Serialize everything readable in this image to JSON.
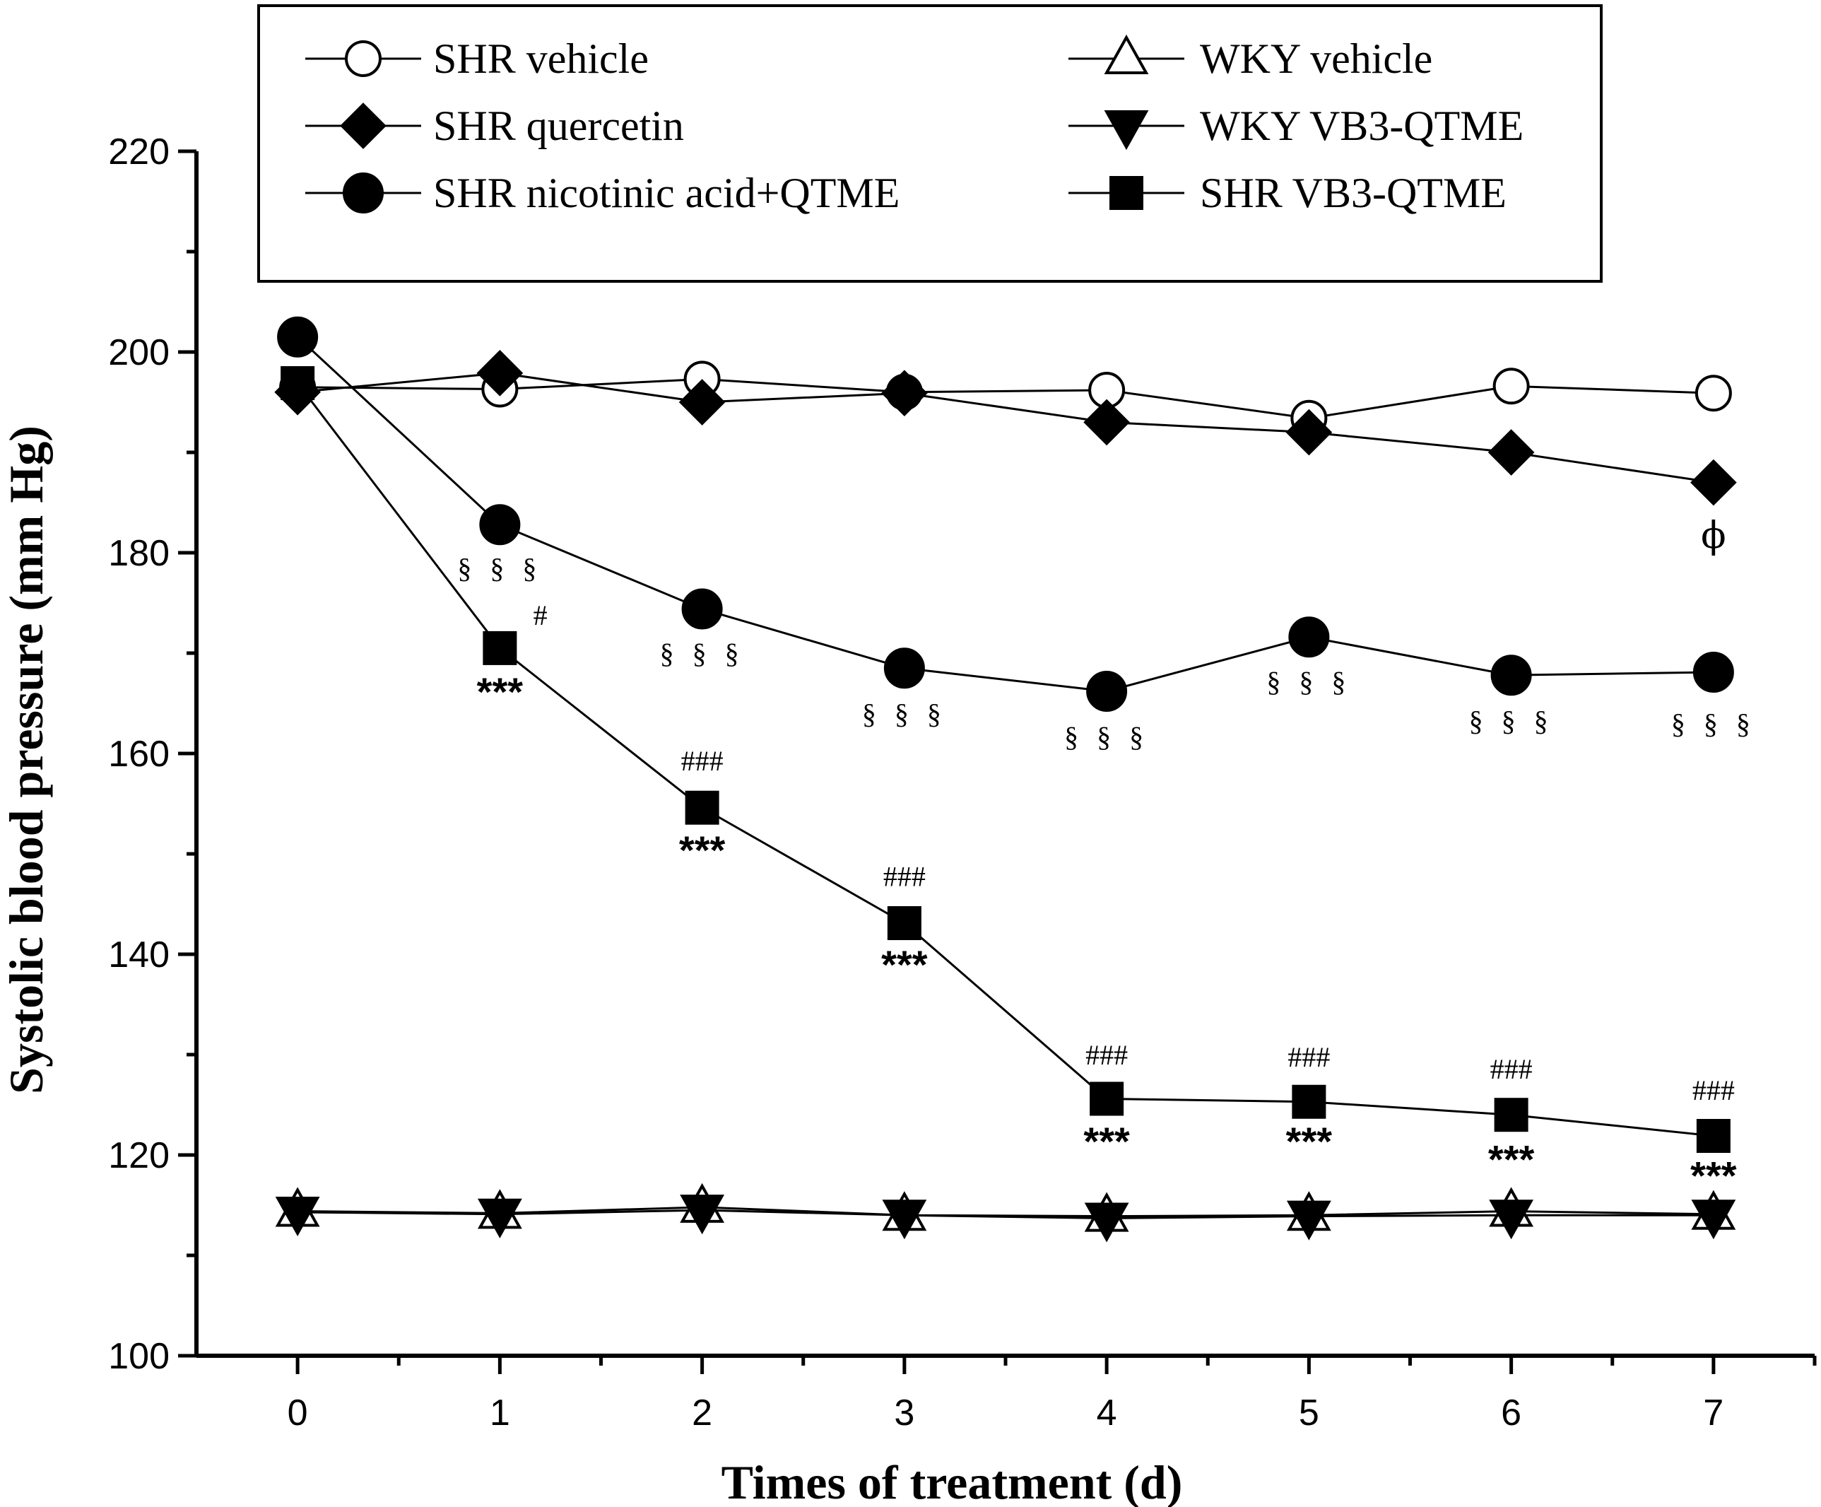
{
  "chart_data": {
    "type": "line",
    "title": "",
    "xlabel": "Times of treatment (d)",
    "ylabel": "Systolic blood pressure (mm Hg)",
    "x": [
      0,
      1,
      2,
      3,
      4,
      5,
      6,
      7
    ],
    "xlim": [
      -0.5,
      7.5
    ],
    "ylim": [
      100,
      220
    ],
    "x_ticks": [
      "0",
      "1",
      "2",
      "3",
      "4",
      "5",
      "6",
      "7"
    ],
    "y_ticks": [
      "100",
      "120",
      "140",
      "160",
      "180",
      "200",
      "220"
    ],
    "grid": false,
    "legend_position": "top",
    "series": [
      {
        "name": "SHR vehicle",
        "marker": "open-circle",
        "values": [
          196.5,
          196.3,
          197.3,
          196.0,
          196.2,
          193.4,
          196.6,
          195.9
        ]
      },
      {
        "name": "WKY vehicle",
        "marker": "open-triangle-up",
        "values": [
          114.4,
          114.2,
          114.8,
          114.0,
          113.9,
          114.0,
          114.4,
          114.1
        ]
      },
      {
        "name": "SHR quercetin",
        "marker": "filled-diamond",
        "values": [
          196.0,
          197.9,
          195.0,
          195.9,
          193.0,
          192.0,
          190.0,
          187.0
        ]
      },
      {
        "name": "WKY VB3-QTME",
        "marker": "filled-triangle-down",
        "values": [
          114.3,
          114.1,
          114.5,
          114.0,
          113.7,
          113.9,
          114.0,
          114.0
        ]
      },
      {
        "name": "SHR nicotinic acid+QTME",
        "marker": "filled-circle",
        "values": [
          201.5,
          182.8,
          174.4,
          168.5,
          166.2,
          171.6,
          167.8,
          168.1
        ]
      },
      {
        "name": "SHR VB3-QTME",
        "marker": "filled-square",
        "values": [
          196.9,
          170.5,
          154.6,
          143.1,
          125.6,
          125.3,
          124.0,
          121.9
        ]
      }
    ],
    "annotations": [
      {
        "text": "§ § §",
        "x": 1,
        "y": 177.5,
        "style": "small"
      },
      {
        "text": "§ § §",
        "x": 2,
        "y": 169.0,
        "style": "small"
      },
      {
        "text": "§ § §",
        "x": 3,
        "y": 163.0,
        "style": "small"
      },
      {
        "text": "§ § §",
        "x": 4,
        "y": 160.7,
        "style": "small"
      },
      {
        "text": "§ § §",
        "x": 5,
        "y": 166.2,
        "style": "small"
      },
      {
        "text": "§ § §",
        "x": 6,
        "y": 162.3,
        "style": "small"
      },
      {
        "text": "§ § §",
        "x": 7,
        "y": 162.0,
        "style": "small"
      },
      {
        "text": "ϕ",
        "x": 7,
        "y": 180.5,
        "style": "phi"
      },
      {
        "text": "#",
        "x": 1.2,
        "y": 172.8,
        "style": "small"
      },
      {
        "text": "###",
        "x": 2,
        "y": 158.3,
        "style": "small"
      },
      {
        "text": "###",
        "x": 3,
        "y": 146.8,
        "style": "small"
      },
      {
        "text": "###",
        "x": 4,
        "y": 129.0,
        "style": "small"
      },
      {
        "text": "###",
        "x": 5,
        "y": 128.8,
        "style": "small"
      },
      {
        "text": "###",
        "x": 6,
        "y": 127.6,
        "style": "small"
      },
      {
        "text": "###",
        "x": 7,
        "y": 125.5,
        "style": "small"
      },
      {
        "text": "***",
        "x": 1,
        "y": 164.8,
        "style": "star"
      },
      {
        "text": "***",
        "x": 2,
        "y": 149.0,
        "style": "star"
      },
      {
        "text": "***",
        "x": 3,
        "y": 137.6,
        "style": "star"
      },
      {
        "text": "***",
        "x": 4,
        "y": 120.0,
        "style": "star"
      },
      {
        "text": "***",
        "x": 5,
        "y": 120.0,
        "style": "star"
      },
      {
        "text": "***",
        "x": 6,
        "y": 118.2,
        "style": "star"
      },
      {
        "text": "***",
        "x": 7,
        "y": 116.6,
        "style": "star"
      }
    ]
  }
}
